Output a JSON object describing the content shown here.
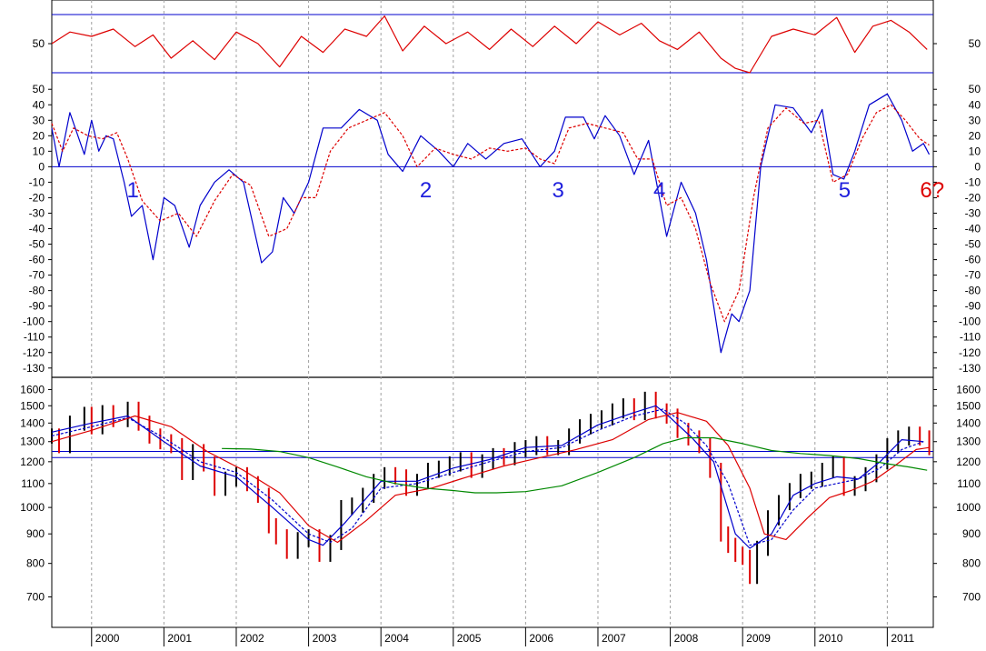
{
  "chart_data": [
    {
      "panel": "top-oscillator",
      "type": "line",
      "y_ticks": [
        {
          "value": 50,
          "label": "50"
        }
      ],
      "ylim": [
        25,
        80
      ],
      "reference_lines": [
        70,
        30
      ],
      "series": [
        {
          "color": "#dd0000",
          "x": [
            1999.45,
            1999.7,
            2000.0,
            2000.3,
            2000.6,
            2000.85,
            2001.1,
            2001.4,
            2001.7,
            2002.0,
            2002.3,
            2002.6,
            2002.9,
            2003.2,
            2003.5,
            2003.8,
            2004.05,
            2004.3,
            2004.6,
            2004.9,
            2005.2,
            2005.5,
            2005.8,
            2006.1,
            2006.4,
            2006.7,
            2007.0,
            2007.3,
            2007.6,
            2007.85,
            2008.1,
            2008.4,
            2008.7,
            2008.9,
            2009.1,
            2009.4,
            2009.7,
            2010.0,
            2010.3,
            2010.55,
            2010.8,
            2011.05,
            2011.3,
            2011.55
          ],
          "y": [
            50,
            58,
            55,
            60,
            48,
            56,
            40,
            52,
            39,
            58,
            50,
            34,
            55,
            44,
            60,
            55,
            69,
            45,
            62,
            50,
            58,
            46,
            60,
            48,
            62,
            50,
            65,
            56,
            64,
            52,
            46,
            58,
            40,
            33,
            30,
            55,
            60,
            56,
            68,
            44,
            62,
            66,
            58,
            46
          ]
        }
      ]
    },
    {
      "panel": "middle-oscillator",
      "type": "line",
      "y_ticks": [
        50,
        40,
        30,
        20,
        10,
        0,
        -10,
        -20,
        -30,
        -40,
        -50,
        -60,
        -70,
        -80,
        -90,
        -100,
        -110,
        -120,
        -130
      ],
      "ylim": [
        -136,
        56
      ],
      "zero_line": 0,
      "annotations": [
        {
          "text": "1",
          "x": 2000.57,
          "y": -14,
          "color": "#1f1fdd"
        },
        {
          "text": "2",
          "x": 2004.62,
          "y": -14,
          "color": "#1f1fdd"
        },
        {
          "text": "3",
          "x": 2006.45,
          "y": -14,
          "color": "#1f1fdd"
        },
        {
          "text": "4",
          "x": 2007.85,
          "y": -14,
          "color": "#1f1fdd"
        },
        {
          "text": "5",
          "x": 2010.41,
          "y": -14,
          "color": "#1f1fdd"
        },
        {
          "text": "6?",
          "x": 2011.62,
          "y": -14,
          "color": "#dd0000"
        }
      ],
      "series": [
        {
          "color": "#0000cc",
          "style": "solid",
          "x": [
            1999.45,
            1999.55,
            1999.7,
            1999.9,
            2000.0,
            2000.1,
            2000.2,
            2000.3,
            2000.45,
            2000.55,
            2000.7,
            2000.85,
            2001.0,
            2001.15,
            2001.35,
            2001.5,
            2001.7,
            2001.9,
            2002.1,
            2002.35,
            2002.5,
            2002.65,
            2002.8,
            2003.0,
            2003.2,
            2003.45,
            2003.7,
            2003.95,
            2004.1,
            2004.3,
            2004.55,
            2004.8,
            2005.0,
            2005.2,
            2005.45,
            2005.7,
            2005.95,
            2006.2,
            2006.4,
            2006.55,
            2006.8,
            2006.95,
            2007.1,
            2007.3,
            2007.5,
            2007.7,
            2007.95,
            2008.15,
            2008.35,
            2008.5,
            2008.7,
            2008.85,
            2008.95,
            2009.1,
            2009.25,
            2009.45,
            2009.7,
            2009.95,
            2010.1,
            2010.25,
            2010.4,
            2010.55,
            2010.75,
            2011.0,
            2011.2,
            2011.35,
            2011.5,
            2011.58
          ],
          "y": [
            25,
            0,
            35,
            8,
            30,
            10,
            20,
            18,
            -10,
            -32,
            -25,
            -60,
            -20,
            -25,
            -52,
            -25,
            -10,
            -2,
            -10,
            -62,
            -55,
            -20,
            -30,
            -10,
            25,
            25,
            37,
            30,
            8,
            -3,
            20,
            10,
            0,
            15,
            5,
            15,
            18,
            0,
            10,
            32,
            32,
            18,
            33,
            20,
            -5,
            17,
            -45,
            -10,
            -30,
            -60,
            -120,
            -95,
            -100,
            -80,
            0,
            40,
            38,
            22,
            37,
            -5,
            -8,
            10,
            40,
            47,
            30,
            10,
            15,
            8
          ]
        },
        {
          "color": "#dd0000",
          "style": "dashed",
          "x": [
            1999.45,
            1999.6,
            1999.75,
            1999.95,
            2000.15,
            2000.35,
            2000.5,
            2000.7,
            2000.95,
            2001.2,
            2001.45,
            2001.7,
            2001.95,
            2002.2,
            2002.45,
            2002.7,
            2002.9,
            2003.1,
            2003.3,
            2003.55,
            2003.8,
            2004.05,
            2004.3,
            2004.5,
            2004.75,
            2005.0,
            2005.25,
            2005.5,
            2005.75,
            2006.0,
            2006.2,
            2006.4,
            2006.6,
            2006.85,
            2007.1,
            2007.35,
            2007.55,
            2007.75,
            2007.95,
            2008.15,
            2008.35,
            2008.55,
            2008.75,
            2008.95,
            2009.15,
            2009.35,
            2009.6,
            2009.85,
            2010.05,
            2010.25,
            2010.45,
            2010.65,
            2010.85,
            2011.05,
            2011.25,
            2011.45,
            2011.58
          ],
          "y": [
            28,
            10,
            25,
            20,
            18,
            22,
            5,
            -22,
            -35,
            -30,
            -45,
            -22,
            -5,
            -12,
            -45,
            -40,
            -20,
            -20,
            10,
            25,
            30,
            35,
            20,
            0,
            12,
            8,
            5,
            12,
            10,
            12,
            5,
            2,
            25,
            28,
            25,
            22,
            5,
            5,
            -25,
            -20,
            -40,
            -75,
            -100,
            -80,
            -20,
            25,
            38,
            28,
            30,
            -10,
            -5,
            18,
            35,
            40,
            30,
            18,
            14
          ]
        }
      ]
    },
    {
      "panel": "price",
      "type": "line",
      "y_ticks": [
        1600,
        1500,
        1400,
        1300,
        1200,
        1100,
        1000,
        900,
        800,
        700
      ],
      "ylim": [
        620,
        1680
      ],
      "log_scale": true,
      "reference_lines": [
        1250,
        1220
      ],
      "series": [
        {
          "color": "#000000",
          "style": "bars",
          "x": [
            1999.45,
            1999.55,
            1999.7,
            1999.9,
            2000.0,
            2000.15,
            2000.3,
            2000.5,
            2000.65,
            2000.8,
            2000.95,
            2001.1,
            2001.25,
            2001.4,
            2001.55,
            2001.7,
            2001.85,
            2002.0,
            2002.15,
            2002.3,
            2002.45,
            2002.55,
            2002.7,
            2002.85,
            2003.0,
            2003.15,
            2003.3,
            2003.45,
            2003.6,
            2003.75,
            2003.9,
            2004.05,
            2004.2,
            2004.35,
            2004.5,
            2004.65,
            2004.8,
            2004.95,
            2005.1,
            2005.25,
            2005.4,
            2005.55,
            2005.7,
            2005.85,
            2006.0,
            2006.15,
            2006.3,
            2006.45,
            2006.6,
            2006.75,
            2006.9,
            2007.05,
            2007.2,
            2007.35,
            2007.5,
            2007.65,
            2007.8,
            2007.95,
            2008.1,
            2008.25,
            2008.4,
            2008.55,
            2008.7,
            2008.8,
            2008.9,
            2009.0,
            2009.1,
            2009.2,
            2009.35,
            2009.5,
            2009.65,
            2009.8,
            2009.95,
            2010.1,
            2010.25,
            2010.4,
            2010.55,
            2010.7,
            2010.85,
            2011.0,
            2011.15,
            2011.3,
            2011.45,
            2011.58
          ],
          "y": [
            1330,
            1280,
            1400,
            1450,
            1380,
            1460,
            1420,
            1480,
            1400,
            1330,
            1300,
            1280,
            1150,
            1250,
            1190,
            1080,
            1120,
            1140,
            1100,
            1050,
            930,
            890,
            840,
            880,
            890,
            830,
            870,
            1000,
            1010,
            1050,
            1110,
            1140,
            1130,
            1080,
            1110,
            1160,
            1170,
            1190,
            1210,
            1160,
            1200,
            1230,
            1220,
            1260,
            1270,
            1290,
            1270,
            1270,
            1330,
            1380,
            1410,
            1430,
            1470,
            1500,
            1460,
            1540,
            1470,
            1440,
            1360,
            1320,
            1280,
            1160,
            900,
            860,
            830,
            820,
            760,
            850,
            960,
            1020,
            1070,
            1110,
            1120,
            1160,
            1190,
            1080,
            1100,
            1140,
            1200,
            1280,
            1320,
            1340,
            1320,
            1270
          ]
        },
        {
          "color": "#0000cc",
          "style": "solid",
          "x": [
            1999.45,
            2000.0,
            2000.5,
            2001.0,
            2001.5,
            2002.0,
            2002.5,
            2003.0,
            2003.2,
            2003.5,
            2004.0,
            2004.5,
            2005.0,
            2005.5,
            2006.0,
            2006.5,
            2007.0,
            2007.5,
            2007.8,
            2008.0,
            2008.3,
            2008.6,
            2008.9,
            2009.1,
            2009.4,
            2009.7,
            2010.0,
            2010.3,
            2010.6,
            2010.9,
            2011.2,
            2011.5
          ],
          "y": [
            1350,
            1400,
            1440,
            1300,
            1180,
            1130,
            1000,
            880,
            860,
            940,
            1110,
            1110,
            1170,
            1210,
            1270,
            1280,
            1390,
            1460,
            1500,
            1430,
            1320,
            1200,
            900,
            850,
            900,
            1050,
            1100,
            1130,
            1120,
            1200,
            1310,
            1300
          ]
        },
        {
          "color": "#0000cc",
          "style": "dashed",
          "x": [
            1999.45,
            2000.0,
            2000.5,
            2001.0,
            2001.5,
            2002.0,
            2002.5,
            2003.0,
            2003.3,
            2003.6,
            2004.0,
            2004.5,
            2005.0,
            2005.5,
            2006.0,
            2006.5,
            2007.0,
            2007.5,
            2007.9,
            2008.2,
            2008.5,
            2008.8,
            2009.1,
            2009.4,
            2009.7,
            2010.0,
            2010.3,
            2010.6,
            2010.9,
            2011.2,
            2011.5
          ],
          "y": [
            1330,
            1380,
            1430,
            1320,
            1200,
            1150,
            1030,
            900,
            870,
            920,
            1080,
            1100,
            1150,
            1200,
            1250,
            1270,
            1360,
            1440,
            1480,
            1400,
            1280,
            1100,
            860,
            880,
            990,
            1080,
            1100,
            1120,
            1170,
            1260,
            1300
          ]
        },
        {
          "color": "#dd0000",
          "style": "solid",
          "x": [
            1999.45,
            2000.0,
            2000.6,
            2001.1,
            2001.6,
            2002.1,
            2002.6,
            2003.0,
            2003.4,
            2003.8,
            2004.2,
            2004.7,
            2005.2,
            2005.7,
            2006.2,
            2006.7,
            2007.2,
            2007.7,
            2008.1,
            2008.5,
            2008.8,
            2009.1,
            2009.3,
            2009.6,
            2009.9,
            2010.2,
            2010.5,
            2010.8,
            2011.1,
            2011.4,
            2011.58
          ],
          "y": [
            1300,
            1360,
            1440,
            1380,
            1250,
            1160,
            1060,
            930,
            870,
            950,
            1050,
            1080,
            1130,
            1180,
            1220,
            1260,
            1310,
            1420,
            1460,
            1410,
            1280,
            1080,
            900,
            880,
            960,
            1040,
            1070,
            1110,
            1180,
            1260,
            1270
          ]
        },
        {
          "color": "#008800",
          "style": "solid",
          "x": [
            2001.8,
            2002.2,
            2002.6,
            2003.0,
            2003.4,
            2003.8,
            2004.2,
            2004.6,
            2005.0,
            2005.3,
            2005.6,
            2006.0,
            2006.5,
            2007.0,
            2007.5,
            2007.9,
            2008.2,
            2008.6,
            2009.0,
            2009.4,
            2009.8,
            2010.2,
            2010.6,
            2011.0,
            2011.3,
            2011.55
          ],
          "y": [
            1265,
            1262,
            1250,
            1220,
            1175,
            1130,
            1100,
            1080,
            1070,
            1060,
            1060,
            1065,
            1090,
            1150,
            1220,
            1290,
            1320,
            1320,
            1290,
            1255,
            1240,
            1230,
            1215,
            1190,
            1175,
            1160
          ]
        }
      ]
    }
  ],
  "x_axis": {
    "years": [
      "2000",
      "2001",
      "2002",
      "2003",
      "2004",
      "2005",
      "2006",
      "2007",
      "2008",
      "2009",
      "2010",
      "2011"
    ]
  },
  "colors": {
    "grid": "#a0a0a0",
    "frame": "#000000",
    "reference_line": "#0000cc"
  }
}
